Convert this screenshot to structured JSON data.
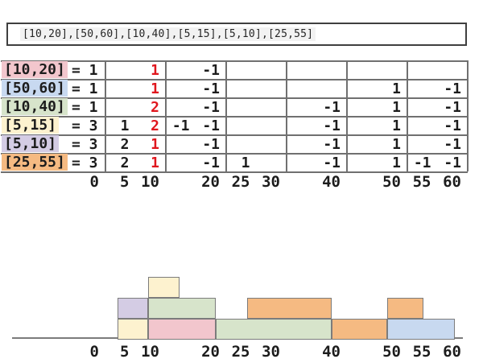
{
  "input_box": {
    "value": "[10,20],[50,60],[10,40],[5,15],[5,10],[25,55]"
  },
  "colors": {
    "red_value": "#e0161d",
    "text": "#1c1c1c",
    "table_line": "#707070",
    "brick_border": "#7c7c7c",
    "interval_fills": {
      "pink": "#f2c6cd",
      "blue": "#c8d9f0",
      "green": "#d7e4cb",
      "yellow": "#fdf2cf",
      "purple": "#d4cce4",
      "orange": "#f5ba82"
    }
  },
  "table": {
    "axis_ticks": [
      0,
      5,
      10,
      20,
      25,
      30,
      40,
      50,
      55,
      60
    ],
    "grid_values": [
      0,
      10,
      20,
      30,
      40,
      50,
      60
    ],
    "rows": [
      {
        "label": "[10,20]",
        "fill": "pink",
        "equals": "1",
        "cells": [
          {
            "pos": 10,
            "val": "1",
            "red": true
          },
          {
            "pos": 20,
            "val": "-1",
            "red": false
          }
        ]
      },
      {
        "label": "[50,60]",
        "fill": "blue",
        "equals": "1",
        "cells": [
          {
            "pos": 10,
            "val": "1",
            "red": true
          },
          {
            "pos": 20,
            "val": "-1",
            "red": false
          },
          {
            "pos": 50,
            "val": "1",
            "red": false
          },
          {
            "pos": 60,
            "val": "-1",
            "red": false
          }
        ]
      },
      {
        "label": "[10,40]",
        "fill": "green",
        "equals": "1",
        "cells": [
          {
            "pos": 10,
            "val": "2",
            "red": true
          },
          {
            "pos": 20,
            "val": "-1",
            "red": false
          },
          {
            "pos": 40,
            "val": "-1",
            "red": false
          },
          {
            "pos": 50,
            "val": "1",
            "red": false
          },
          {
            "pos": 60,
            "val": "-1",
            "red": false
          }
        ]
      },
      {
        "label": "[5,15]",
        "fill": "yellow",
        "equals": "3",
        "cells": [
          {
            "pos": 5,
            "val": "1",
            "red": false
          },
          {
            "pos": 10,
            "val": "2",
            "red": true
          },
          {
            "pos": 15,
            "val": "-1",
            "red": false
          },
          {
            "pos": 20,
            "val": "-1",
            "red": false
          },
          {
            "pos": 40,
            "val": "-1",
            "red": false
          },
          {
            "pos": 50,
            "val": "1",
            "red": false
          },
          {
            "pos": 60,
            "val": "-1",
            "red": false
          }
        ]
      },
      {
        "label": "[5,10]",
        "fill": "purple",
        "equals": "3",
        "cells": [
          {
            "pos": 5,
            "val": "2",
            "red": false
          },
          {
            "pos": 10,
            "val": "1",
            "red": true
          },
          {
            "pos": 20,
            "val": "-1",
            "red": false
          },
          {
            "pos": 40,
            "val": "-1",
            "red": false
          },
          {
            "pos": 50,
            "val": "1",
            "red": false
          },
          {
            "pos": 60,
            "val": "-1",
            "red": false
          }
        ]
      },
      {
        "label": "[25,55]",
        "fill": "orange",
        "equals": "3",
        "cells": [
          {
            "pos": 5,
            "val": "2",
            "red": false
          },
          {
            "pos": 10,
            "val": "1",
            "red": true
          },
          {
            "pos": 20,
            "val": "-1",
            "red": false
          },
          {
            "pos": 25,
            "val": "1",
            "red": false
          },
          {
            "pos": 40,
            "val": "-1",
            "red": false
          },
          {
            "pos": 50,
            "val": "1",
            "red": false
          },
          {
            "pos": 55,
            "val": "-1",
            "red": false
          },
          {
            "pos": 60,
            "val": "-1",
            "red": false
          }
        ]
      }
    ]
  },
  "chart_data": {
    "type": "interval-stack",
    "title": "",
    "x_ticks": [
      0,
      5,
      10,
      20,
      25,
      30,
      40,
      50,
      55,
      60
    ],
    "max_overlap": 3,
    "intervals": [
      {
        "interval": "[10,20]",
        "fill": "pink"
      },
      {
        "interval": "[50,60]",
        "fill": "blue"
      },
      {
        "interval": "[10,40]",
        "fill": "green"
      },
      {
        "interval": "[5,15]",
        "fill": "yellow"
      },
      {
        "interval": "[5,10]",
        "fill": "purple"
      },
      {
        "interval": "[25,55]",
        "fill": "orange"
      }
    ],
    "bricks": [
      {
        "from": 5,
        "to": 10,
        "level": 1,
        "fill": "yellow",
        "interval": "[5,15]"
      },
      {
        "from": 10,
        "to": 20,
        "level": 1,
        "fill": "pink",
        "interval": "[10,20]"
      },
      {
        "from": 20,
        "to": 40,
        "level": 1,
        "fill": "green",
        "interval": "[10,40]"
      },
      {
        "from": 40,
        "to": 50,
        "level": 1,
        "fill": "orange",
        "interval": "[25,55]"
      },
      {
        "from": 50,
        "to": 60,
        "level": 1,
        "fill": "blue",
        "interval": "[50,60]"
      },
      {
        "from": 5,
        "to": 10,
        "level": 2,
        "fill": "purple",
        "interval": "[5,10]"
      },
      {
        "from": 10,
        "to": 20,
        "level": 2,
        "fill": "green",
        "interval": "[10,40]"
      },
      {
        "from": 25,
        "to": 40,
        "level": 2,
        "fill": "orange",
        "interval": "[25,55]"
      },
      {
        "from": 50,
        "to": 55,
        "level": 2,
        "fill": "orange",
        "interval": "[25,55]"
      },
      {
        "from": 10,
        "to": 15,
        "level": 3,
        "fill": "yellow",
        "interval": "[5,15]"
      }
    ]
  }
}
